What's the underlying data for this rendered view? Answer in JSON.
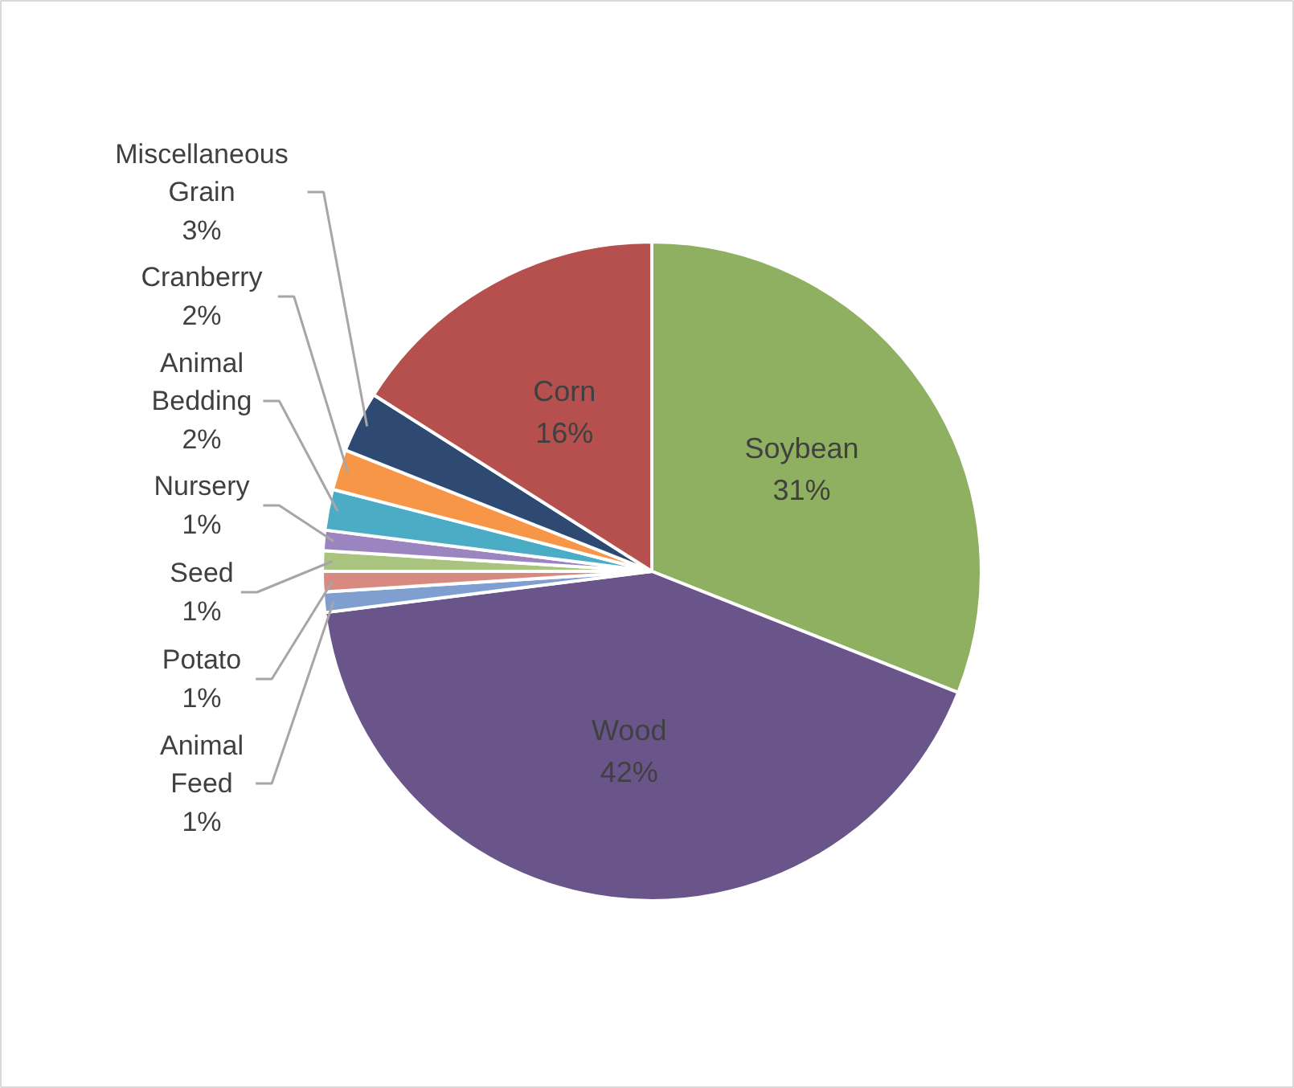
{
  "chart_data": {
    "type": "pie",
    "categories": [
      "Soybean",
      "Wood",
      "Animal Feed",
      "Potato",
      "Seed",
      "Nursery",
      "Animal Bedding",
      "Cranberry",
      "Miscellaneous Grain",
      "Corn"
    ],
    "values": [
      31,
      42,
      1,
      1,
      1,
      1,
      2,
      2,
      3,
      16
    ],
    "colors": [
      "#8fb060",
      "#6a558a",
      "#7f9fd0",
      "#d98a80",
      "#a9c47f",
      "#9b85c0",
      "#4bacc6",
      "#f79646",
      "#2e4a73",
      "#b5504e"
    ],
    "value_labels": [
      "31%",
      "42%",
      "1%",
      "1%",
      "1%",
      "1%",
      "2%",
      "2%",
      "3%",
      "16%"
    ]
  }
}
